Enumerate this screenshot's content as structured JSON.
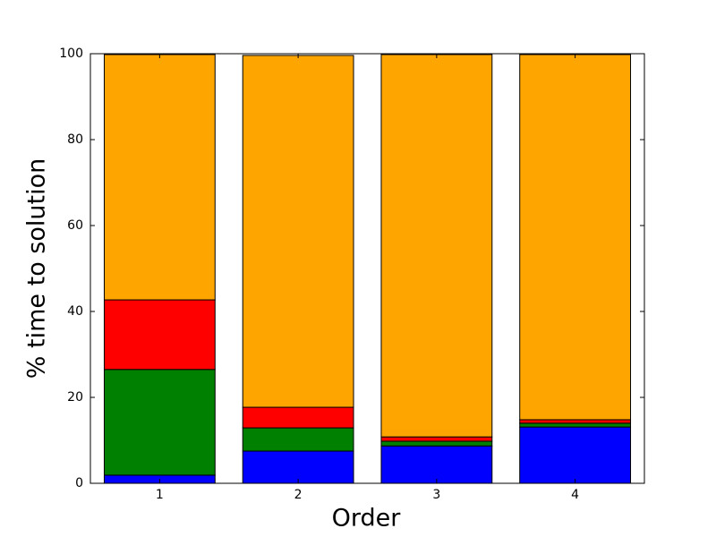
{
  "chart_data": {
    "type": "stacked_bar",
    "x_label": "Order",
    "y_label": "% time to solution",
    "categories": [
      "1",
      "2",
      "3",
      "4"
    ],
    "series": [
      {
        "color": "#0000ff",
        "values": [
          1.9,
          7.5,
          8.7,
          13.1
        ]
      },
      {
        "color": "#008000",
        "values": [
          24.6,
          5.4,
          1.1,
          0.9
        ]
      },
      {
        "color": "#ff0000",
        "values": [
          16.2,
          4.8,
          1.0,
          0.8
        ]
      },
      {
        "color": "#ffa500",
        "values": [
          57.1,
          81.9,
          89.0,
          85.0
        ]
      }
    ],
    "ylim": [
      0,
      100
    ],
    "yticks": [
      0,
      20,
      40,
      60,
      80,
      100
    ],
    "grid": false
  }
}
